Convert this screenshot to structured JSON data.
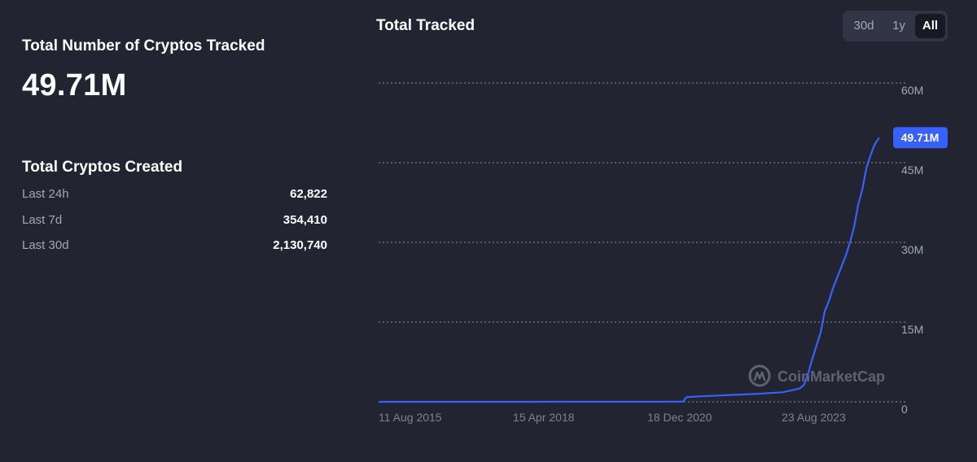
{
  "summary": {
    "tracked_label": "Total Number of Cryptos Tracked",
    "tracked_value": "49.71M"
  },
  "created": {
    "title": "Total Cryptos Created",
    "rows": [
      {
        "label": "Last 24h",
        "value": "62,822"
      },
      {
        "label": "Last 7d",
        "value": "354,410"
      },
      {
        "label": "Last 30d",
        "value": "2,130,740"
      }
    ]
  },
  "range": {
    "options": [
      "30d",
      "1y",
      "All"
    ],
    "selected": "All"
  },
  "watermark": "CoinMarketCap",
  "colors": {
    "line": "#3861fb",
    "badge": "#3861fb",
    "background": "#222531"
  },
  "chart_data": {
    "type": "line",
    "title": "Total Tracked",
    "xlabel": "",
    "ylabel": "",
    "x_ticks": [
      "11 Aug 2015",
      "15 Apr 2018",
      "18 Dec 2020",
      "23 Aug 2023"
    ],
    "y_ticks": [
      "0",
      "15M",
      "30M",
      "45M",
      "60M"
    ],
    "ylim": [
      0,
      60000000
    ],
    "xlim": [
      "2015-08-11",
      "2025-09-01"
    ],
    "grid": true,
    "last_value_label": "49.71M",
    "series": [
      {
        "x": [
          "2015-08-11",
          "2016-06-01",
          "2017-06-01",
          "2018-06-01",
          "2019-06-01",
          "2020-06-01",
          "2021-03-01",
          "2021-09-01",
          "2021-10-01",
          "2022-03-01",
          "2022-09-01",
          "2023-03-01",
          "2023-09-01",
          "2024-01-01",
          "2024-02-01",
          "2024-03-01",
          "2024-04-01",
          "2024-05-01",
          "2024-06-01",
          "2024-07-01",
          "2024-08-01",
          "2024-09-01",
          "2024-10-01",
          "2024-11-01",
          "2024-12-01",
          "2025-01-01",
          "2025-02-01",
          "2025-03-01",
          "2025-04-01",
          "2025-05-01",
          "2025-06-01",
          "2025-07-01",
          "2025-08-01"
        ],
        "y": [
          1000,
          2000,
          3000,
          5000,
          8000,
          12000,
          20000,
          30000,
          900000,
          1100000,
          1300000,
          1500000,
          1800000,
          2500000,
          3200000,
          5200000,
          8000000,
          10500000,
          13000000,
          17000000,
          19000000,
          21500000,
          23500000,
          25500000,
          27500000,
          30000000,
          33000000,
          37000000,
          40000000,
          44000000,
          46500000,
          48500000,
          49710000
        ]
      }
    ]
  }
}
